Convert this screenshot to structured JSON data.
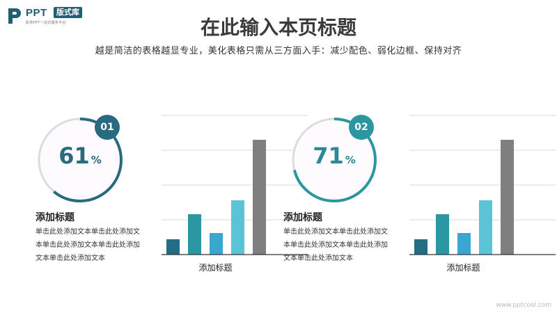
{
  "logo": {
    "brand": "PPT",
    "badge": "版式库",
    "tagline": "职场PPT一站式服务平台"
  },
  "header": {
    "title": "在此输入本页标题",
    "subtitle": "越是简洁的表格越显专业，美化表格只需从三方面入手：减少配色、弱化边框、保持对齐"
  },
  "blocks": [
    {
      "badge": "01",
      "percent": "61",
      "unit": "%",
      "percent_value": 61,
      "title": "添加标题",
      "text": "单击此处添加文本单击此处添加文本单击此处添加文本单击此处添加文本单击此处添加文本",
      "ring_color": "#2a6a80",
      "badge_color": "#2a6a80"
    },
    {
      "badge": "02",
      "percent": "71",
      "unit": "%",
      "percent_value": 71,
      "title": "添加标题",
      "text": "单击此处添加文本单击此处添加文本单击此处添加文本单击此处添加文本单击此处添加文本",
      "ring_color": "#2b95a0",
      "badge_color": "#2b95a0"
    }
  ],
  "chart_data": [
    {
      "type": "bar",
      "xlabel": "添加标题",
      "values": [
        22,
        58,
        31,
        78,
        165
      ],
      "ylim": [
        0,
        200
      ],
      "colors": [
        "#236e85",
        "#2a97a3",
        "#3aa7d1",
        "#5ac3d6",
        "#7f7f7f"
      ]
    },
    {
      "type": "bar",
      "xlabel": "添加标题",
      "values": [
        22,
        58,
        31,
        78,
        165
      ],
      "ylim": [
        0,
        200
      ],
      "colors": [
        "#236e85",
        "#2a97a3",
        "#3aa7d1",
        "#5ac3d6",
        "#7f7f7f"
      ]
    }
  ],
  "watermark": "www.pptcool.com"
}
